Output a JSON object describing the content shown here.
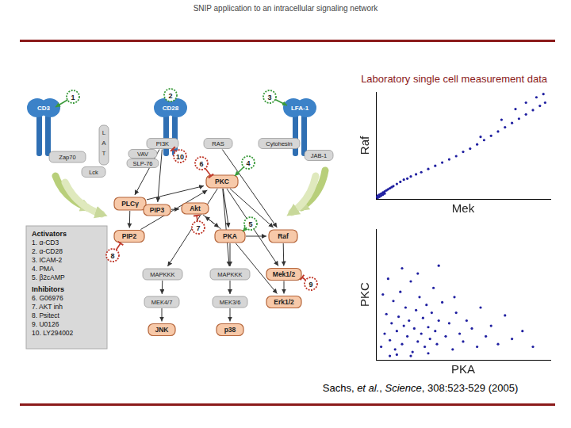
{
  "slide": {
    "header": "SNIP application to an intracellular signaling network",
    "title": "Laboratory single cell measurement data",
    "citation": [
      "Sachs, ",
      "et al.",
      ", ",
      "Science",
      ", 308:523-529 (2005)"
    ]
  },
  "diagram": {
    "receptors": [
      "CD3",
      "CD28",
      "LFA-1"
    ],
    "nodes": [
      "Zap70",
      "LAT",
      "Lck",
      "VAV",
      "SLP-76",
      "PI3K",
      "RAS",
      "Cytohesin",
      "JAB-1",
      "PKC",
      "PLCγ",
      "PIP3",
      "Akt",
      "PIP2",
      "PKA",
      "Raf",
      "MAPKKK",
      "MAPKKK",
      "Mek1/2",
      "MEK4/7",
      "MEK3/6",
      "Erk1/2",
      "JNK",
      "p38"
    ],
    "badges": [
      "1",
      "2",
      "3",
      "4",
      "5",
      "6",
      "7",
      "8",
      "9",
      "10"
    ],
    "legend": {
      "activators_title": "Activators",
      "activators": [
        "1. α-CD3",
        "2. α-CD28",
        "3. ICAM-2",
        "4. PMA",
        "5. β2cAMP"
      ],
      "inhibitors_title": "Inhibitors",
      "inhibitors": [
        "6. G06976",
        "7. AKT inh",
        "8. Psitect",
        "9. U0126",
        "10. LY294002"
      ]
    }
  },
  "chart_data": [
    {
      "type": "scatter",
      "x_label": "Mek",
      "y_label": "Raf",
      "x": [
        0,
        1,
        1,
        2,
        2,
        3,
        3,
        4,
        4,
        5,
        5,
        6,
        7,
        8,
        9,
        10,
        12,
        14,
        16,
        18,
        20,
        23,
        26,
        30,
        34,
        38,
        42,
        46,
        50,
        54,
        58,
        62,
        66,
        70,
        74,
        78,
        82,
        86,
        90,
        94,
        97,
        60,
        72,
        80,
        86,
        92,
        96
      ],
      "values": [
        2,
        3,
        1,
        4,
        2,
        5,
        3,
        6,
        4,
        7,
        5,
        8,
        9,
        10,
        11,
        12,
        14,
        16,
        18,
        19,
        21,
        23,
        25,
        28,
        31,
        34,
        37,
        40,
        44,
        47,
        51,
        55,
        59,
        63,
        67,
        71,
        75,
        79,
        83,
        87,
        90,
        58,
        74,
        84,
        90,
        95,
        98
      ],
      "color": "#1f1fa0",
      "marker": "circle",
      "xlim": [
        0,
        100
      ],
      "ylim": [
        0,
        100
      ],
      "grid": false,
      "tick_labels": false
    },
    {
      "type": "scatter",
      "x_label": "PKA",
      "y_label": "PKC",
      "x": [
        3,
        5,
        6,
        8,
        9,
        10,
        11,
        12,
        13,
        14,
        15,
        16,
        17,
        18,
        19,
        20,
        21,
        22,
        23,
        24,
        25,
        26,
        27,
        28,
        29,
        30,
        31,
        32,
        33,
        34,
        35,
        36,
        38,
        40,
        42,
        44,
        46,
        48,
        50,
        52,
        55,
        58,
        60,
        63,
        66,
        70,
        74,
        78,
        84,
        90,
        4,
        7,
        15,
        24,
        36,
        12,
        20,
        30,
        8,
        45
      ],
      "values": [
        10,
        20,
        35,
        15,
        28,
        45,
        8,
        22,
        33,
        52,
        12,
        26,
        40,
        18,
        30,
        60,
        6,
        24,
        38,
        14,
        48,
        20,
        32,
        10,
        42,
        25,
        16,
        36,
        55,
        22,
        12,
        30,
        44,
        18,
        28,
        8,
        36,
        20,
        14,
        30,
        24,
        10,
        40,
        18,
        26,
        12,
        34,
        16,
        22,
        10,
        50,
        62,
        70,
        66,
        72,
        4,
        3,
        5,
        3,
        48
      ],
      "color": "#1f1fa0",
      "marker": "circle",
      "xlim": [
        0,
        100
      ],
      "ylim": [
        0,
        100
      ],
      "grid": false,
      "tick_labels": false
    }
  ]
}
